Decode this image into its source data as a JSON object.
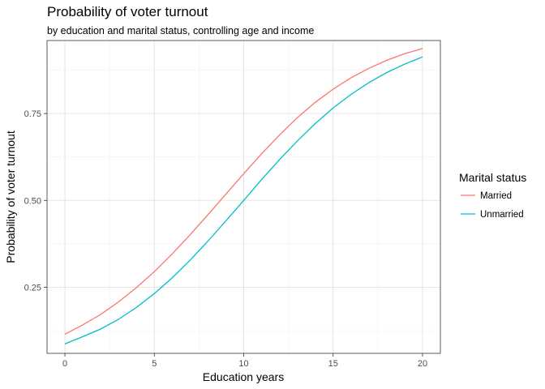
{
  "chart_data": {
    "type": "line",
    "title": "Probability of voter turnout",
    "subtitle": "by education and marital status, controlling age and income",
    "xlabel": "Education years",
    "ylabel": "Probability of voter turnout",
    "xlim": [
      -1,
      21
    ],
    "ylim": [
      0.06,
      0.96
    ],
    "x_ticks": [
      0,
      5,
      10,
      15,
      20
    ],
    "x_tick_labels": [
      "0",
      "5",
      "10",
      "15",
      "20"
    ],
    "y_ticks": [
      0.25,
      0.5,
      0.75
    ],
    "y_tick_labels": [
      "0.25",
      "0.50",
      "0.75"
    ],
    "grid": true,
    "legend": {
      "title": "Marital status",
      "position": "right"
    },
    "x": [
      0,
      1,
      2,
      3,
      4,
      5,
      6,
      7,
      8,
      9,
      10,
      11,
      12,
      13,
      14,
      15,
      16,
      17,
      18,
      19,
      20
    ],
    "series": [
      {
        "name": "Married",
        "color": "#F8766D",
        "values": [
          0.115,
          0.142,
          0.172,
          0.208,
          0.249,
          0.295,
          0.346,
          0.401,
          0.459,
          0.518,
          0.577,
          0.634,
          0.688,
          0.738,
          0.782,
          0.82,
          0.853,
          0.88,
          0.903,
          0.922,
          0.937
        ]
      },
      {
        "name": "Unmarried",
        "color": "#00BFC4",
        "values": [
          0.087,
          0.108,
          0.13,
          0.158,
          0.192,
          0.232,
          0.277,
          0.328,
          0.383,
          0.441,
          0.5,
          0.56,
          0.617,
          0.671,
          0.721,
          0.766,
          0.805,
          0.839,
          0.868,
          0.892,
          0.913
        ]
      }
    ]
  }
}
